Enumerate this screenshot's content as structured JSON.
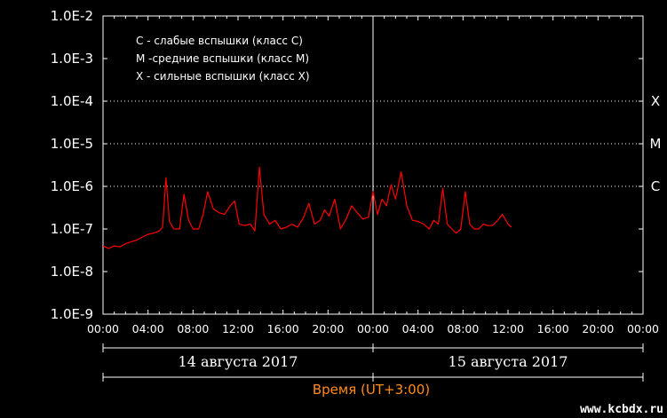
{
  "chart_data": {
    "type": "line",
    "y_scale": "log",
    "ylim": [
      "1.0E-9",
      "1.0E-2"
    ],
    "y_ticks": [
      "1.0E-2",
      "1.0E-3",
      "1.0E-4",
      "1.0E-5",
      "1.0E-6",
      "1.0E-7",
      "1.0E-8",
      "1.0E-9"
    ],
    "x_ticks": [
      "00:00",
      "04:00",
      "08:00",
      "12:00",
      "16:00",
      "20:00",
      "00:00",
      "04:00",
      "08:00",
      "12:00",
      "16:00",
      "20:00",
      "00:00"
    ],
    "xlabel": "Время (UT+3:00)",
    "days": [
      "14 августа 2017",
      "15 августа 2017"
    ],
    "class_levels": [
      {
        "label": "X",
        "value": "1.0E-4"
      },
      {
        "label": "M",
        "value": "1.0E-5"
      },
      {
        "label": "C",
        "value": "1.0E-6"
      }
    ],
    "legend": [
      "C - слабые вспышки (класс C)",
      "M -средние вспышки (класс M)",
      "X - сильные вспышки (класс X)"
    ],
    "grid": "dotted",
    "series_color": "#ff0000",
    "series": [
      {
        "x_hours": [
          0,
          0.5,
          1,
          1.5,
          2,
          2.5,
          3,
          3.5,
          4,
          4.5,
          5,
          5.3,
          5.6,
          5.9,
          6.3,
          6.8,
          7.2,
          7.6,
          8,
          8.5,
          8.9,
          9.3,
          9.8,
          10.3,
          10.8,
          11.3,
          11.7,
          12.1,
          12.6,
          13.1,
          13.5,
          13.9,
          14.3,
          14.8,
          15.3,
          15.8,
          16.3,
          16.8,
          17.3,
          17.8,
          18.3,
          18.8,
          19.3,
          19.7,
          20.1,
          20.6,
          21.1,
          21.6,
          22.1,
          22.6,
          23.1,
          23.6,
          24,
          24.4,
          24.8,
          25.2,
          25.6,
          26,
          26.5,
          27,
          27.5,
          28,
          28.5,
          29,
          29.4,
          29.8,
          30.2,
          30.6,
          31,
          31.4,
          31.8,
          32.2,
          32.6,
          33,
          33.4,
          33.8,
          34.2,
          34.6,
          35,
          35.5,
          36,
          36.3
        ],
        "y": [
          4e-08,
          3.5e-08,
          4e-08,
          3.8e-08,
          4.5e-08,
          5e-08,
          5.5e-08,
          6.5e-08,
          7.5e-08,
          8e-08,
          9e-08,
          1.1e-07,
          1.6e-06,
          1.5e-07,
          1e-07,
          1e-07,
          6.5e-07,
          1.6e-07,
          1e-07,
          1e-07,
          2.2e-07,
          7.5e-07,
          3e-07,
          2.4e-07,
          2.2e-07,
          3.5e-07,
          4.5e-07,
          1.3e-07,
          1.2e-07,
          1.3e-07,
          9e-08,
          2.8e-06,
          2.2e-07,
          1.3e-07,
          1.6e-07,
          1e-07,
          1.1e-07,
          1.3e-07,
          1.1e-07,
          1.8e-07,
          4e-07,
          1.3e-07,
          1.6e-07,
          2.8e-07,
          2e-07,
          5e-07,
          1e-07,
          1.7e-07,
          3.5e-07,
          2.4e-07,
          1.7e-07,
          1.9e-07,
          7.5e-07,
          2.2e-07,
          5e-07,
          3.5e-07,
          1.1e-06,
          5e-07,
          2.2e-06,
          3.5e-07,
          1.6e-07,
          1.5e-07,
          1.3e-07,
          1e-07,
          1.6e-07,
          1.3e-07,
          9e-07,
          1.3e-07,
          1e-07,
          8e-08,
          1e-07,
          7.5e-07,
          1.3e-07,
          1e-07,
          1e-07,
          1.3e-07,
          1.2e-07,
          1.2e-07,
          1.5e-07,
          2.2e-07,
          1.3e-07,
          1.1e-07
        ]
      }
    ]
  },
  "watermark": "www.kcbdx.ru"
}
